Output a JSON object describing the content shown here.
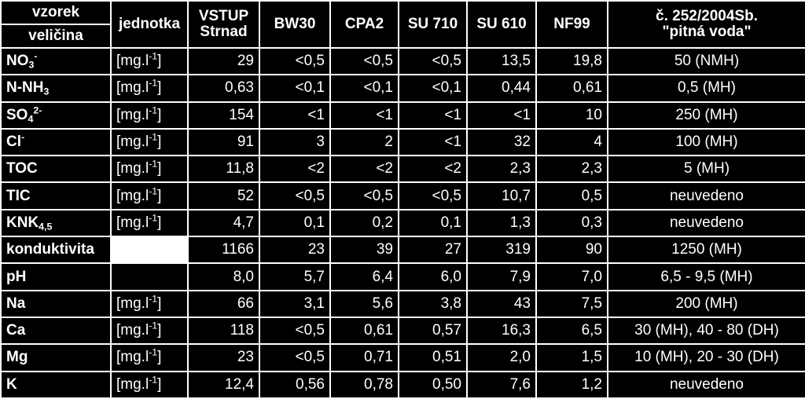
{
  "header": {
    "corner_top": "vzorek",
    "corner_bottom": "veličina",
    "unit_header": "jednotka",
    "columns": [
      {
        "line1": "VSTUP",
        "line2": "Strnad"
      },
      {
        "line1": "BW30",
        "line2": ""
      },
      {
        "line1": "CPA2",
        "line2": ""
      },
      {
        "line1": "SU 710",
        "line2": ""
      },
      {
        "line1": "SU 610",
        "line2": ""
      },
      {
        "line1": "NF99",
        "line2": ""
      },
      {
        "line1": "č. 252/2004Sb.",
        "line2": "\"pitná voda\""
      }
    ]
  },
  "unit_text": {
    "base": "[mg.l",
    "sup": "-1",
    "close": "]"
  },
  "rows": [
    {
      "name": {
        "base": "NO",
        "sub": "3",
        "sup": "-"
      },
      "unit": true,
      "values": [
        "29",
        "<0,5",
        "<0,5",
        "<0,5",
        "13,5",
        "19,8"
      ],
      "limit": "50 (NMH)"
    },
    {
      "name": {
        "base": "N-NH",
        "sub": "3",
        "sup": ""
      },
      "unit": true,
      "values": [
        "0,63",
        "<0,1",
        "<0,1",
        "<0,1",
        "0,44",
        "0,61"
      ],
      "limit": "0,5 (MH)"
    },
    {
      "name": {
        "base": "SO",
        "sub": "4",
        "sup": "2-"
      },
      "unit": true,
      "values": [
        "154",
        "<1",
        "<1",
        "<1",
        "<1",
        "10"
      ],
      "limit": "250 (MH)"
    },
    {
      "name": {
        "base": "Cl",
        "sub": "",
        "sup": "-"
      },
      "unit": true,
      "values": [
        "91",
        "3",
        "2",
        "<1",
        "32",
        "4"
      ],
      "limit": "100 (MH)"
    },
    {
      "name": {
        "base": "TOC",
        "sub": "",
        "sup": ""
      },
      "unit": true,
      "values": [
        "11,8",
        "<2",
        "<2",
        "<2",
        "2,3",
        "2,3"
      ],
      "limit": "5 (MH)"
    },
    {
      "name": {
        "base": "TIC",
        "sub": "",
        "sup": ""
      },
      "unit": true,
      "values": [
        "52",
        "<0,5",
        "<0,5",
        "<0,5",
        "10,7",
        "0,5"
      ],
      "limit": "neuvedeno"
    },
    {
      "name": {
        "base": "KNK",
        "sub": "4,5",
        "sup": ""
      },
      "unit": true,
      "values": [
        "4,7",
        "0,1",
        "0,2",
        "0,1",
        "1,3",
        "0,3"
      ],
      "limit": "neuvedeno"
    },
    {
      "name": {
        "base": "konduktivita",
        "sub": "",
        "sup": ""
      },
      "unit": false,
      "unit_bg": "#ffffff",
      "values": [
        "1166",
        "23",
        "39",
        "27",
        "319",
        "90"
      ],
      "limit": "1250 (MH)"
    },
    {
      "name": {
        "base": "pH",
        "sub": "",
        "sup": ""
      },
      "unit": false,
      "unit_bg": "#000000",
      "values": [
        "8,0",
        "5,7",
        "6,4",
        "6,0",
        "7,9",
        "7,0"
      ],
      "limit": "6,5 - 9,5 (MH)"
    },
    {
      "name": {
        "base": "Na",
        "sub": "",
        "sup": ""
      },
      "unit": true,
      "values": [
        "66",
        "3,1",
        "5,6",
        "3,8",
        "43",
        "7,5"
      ],
      "limit": "200 (MH)"
    },
    {
      "name": {
        "base": "Ca",
        "sub": "",
        "sup": ""
      },
      "unit": true,
      "values": [
        "118",
        "<0,5",
        "0,61",
        "0,57",
        "16,3",
        "6,5"
      ],
      "limit": "30 (MH), 40 - 80 (DH)"
    },
    {
      "name": {
        "base": "Mg",
        "sub": "",
        "sup": ""
      },
      "unit": true,
      "values": [
        "23",
        "<0,5",
        "0,71",
        "0,51",
        "2,0",
        "1,5"
      ],
      "limit": "10 (MH), 20 - 30 (DH)"
    },
    {
      "name": {
        "base": "K",
        "sub": "",
        "sup": ""
      },
      "unit": true,
      "values": [
        "12,4",
        "0,56",
        "0,78",
        "0,50",
        "7,6",
        "1,2"
      ],
      "limit": "neuvedeno"
    }
  ]
}
